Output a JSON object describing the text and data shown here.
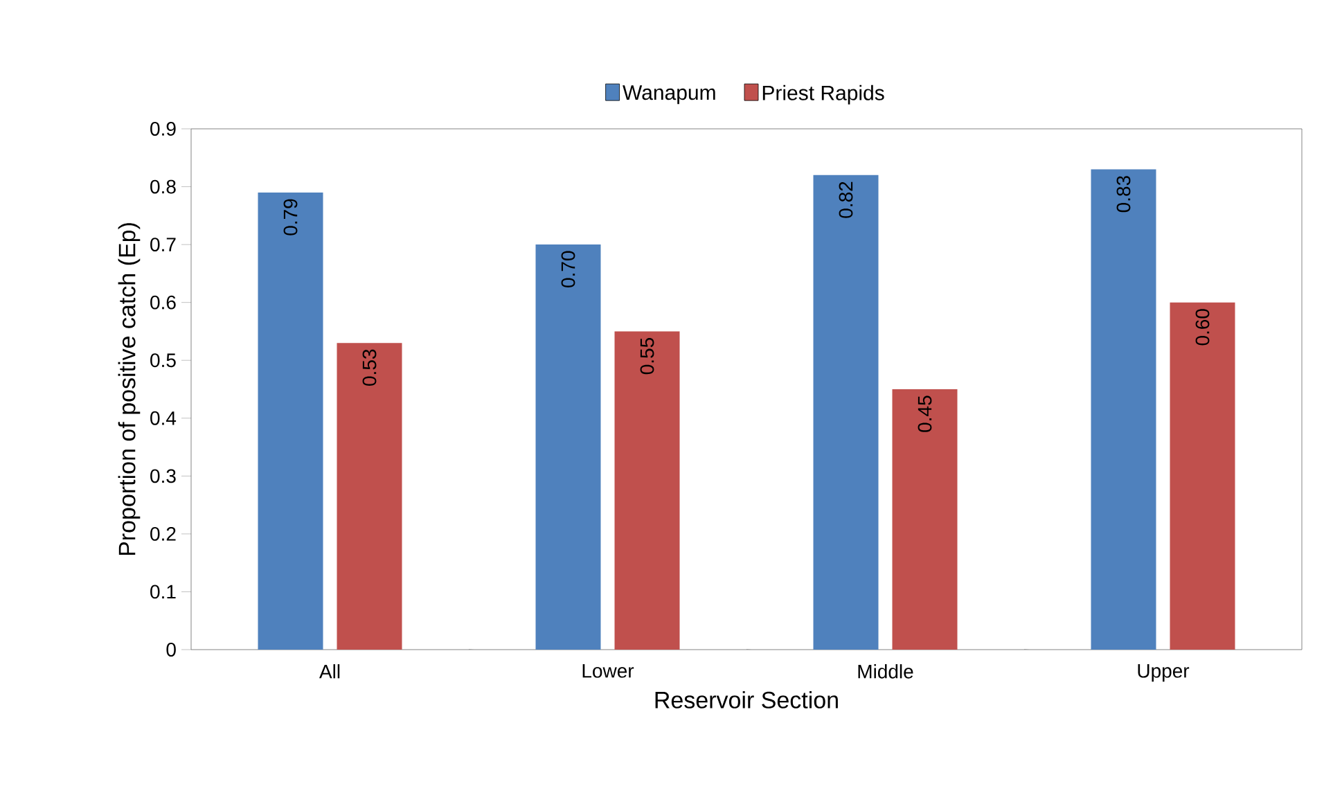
{
  "chart_data": {
    "type": "bar",
    "xlabel": "Reservoir Section",
    "ylabel": "Proportion of positive catch (Ep)",
    "categories": [
      "All",
      "Lower",
      "Middle",
      "Upper"
    ],
    "series": [
      {
        "name": "Wanapum",
        "color": "#4f81bd",
        "values": [
          0.79,
          0.7,
          0.82,
          0.83
        ],
        "value_labels": [
          "0.79",
          "0.70",
          "0.82",
          "0.83"
        ]
      },
      {
        "name": "Priest Rapids",
        "color": "#c0504d",
        "values": [
          0.53,
          0.55,
          0.45,
          0.6
        ],
        "value_labels": [
          "0.53",
          "0.55",
          "0.45",
          "0.60"
        ]
      }
    ],
    "ylim": [
      0,
      0.9
    ],
    "yticks": [
      0,
      0.1,
      0.2,
      0.3,
      0.4,
      0.5,
      0.6,
      0.7,
      0.8,
      0.9
    ],
    "legend": "top",
    "grid": false
  }
}
